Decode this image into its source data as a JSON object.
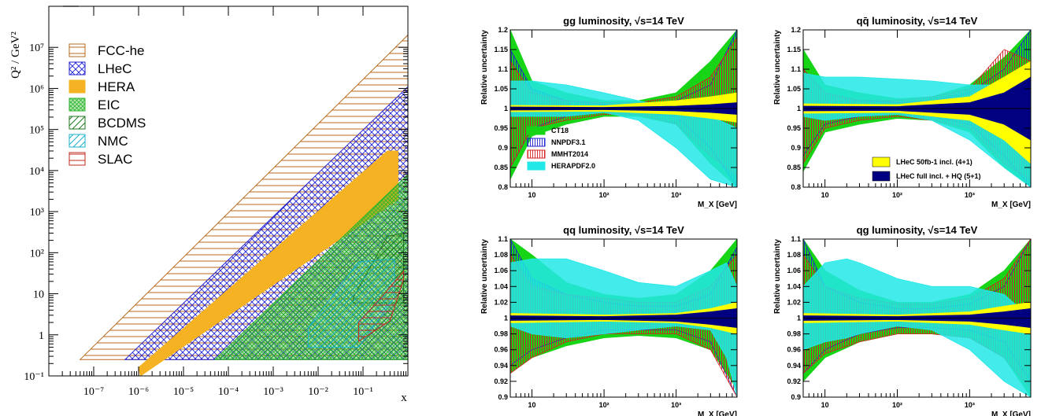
{
  "chart_data": [
    {
      "type": "area",
      "panel": "kinematic-plane",
      "ylabel": "Q² / GeV²",
      "xlabel": "x",
      "x_scale": "log",
      "y_scale": "log",
      "xlim": [
        1e-08,
        1
      ],
      "ylim": [
        0.1,
        100000000.0
      ],
      "x_ticks": [
        "10⁻⁷",
        "10⁻⁶",
        "10⁻⁵",
        "10⁻⁴",
        "10⁻³",
        "10⁻²",
        "10⁻¹"
      ],
      "y_ticks": [
        "10⁻¹",
        "1",
        "10",
        "10²",
        "10³",
        "10⁴",
        "10⁵",
        "10⁶",
        "10⁷"
      ],
      "legend_position": "top-left",
      "series": [
        {
          "name": "FCC-he",
          "color": "#b8691c",
          "pattern": "horizontal-hatch",
          "polygon": [
            [
              5e-08,
              0.25
            ],
            [
              1,
              0.25
            ],
            [
              1,
              20000000.0
            ]
          ]
        },
        {
          "name": "LHeC",
          "color": "#1f1fd0",
          "pattern": "cross-hatch",
          "polygon": [
            [
              5e-07,
              0.25
            ],
            [
              1,
              0.25
            ],
            [
              1,
              1100000.0
            ]
          ]
        },
        {
          "name": "HERA",
          "color": "#f5b324",
          "pattern": "solid",
          "polygon": [
            [
              1.1e-06,
              0.1
            ],
            [
              0.6,
              2000
            ],
            [
              0.6,
              30000
            ],
            [
              0.35,
              30000
            ],
            [
              1e-06,
              0.16
            ]
          ]
        },
        {
          "name": "EIC",
          "color": "#2ab52a",
          "pattern": "fine-cross-hatch",
          "polygon": [
            [
              5e-05,
              0.25
            ],
            [
              1,
              0.25
            ],
            [
              1,
              8000
            ]
          ]
        },
        {
          "name": "BCDMS",
          "color": "#1f7a1f",
          "pattern": "diagonal-hatch",
          "polygon": [
            [
              0.06,
              6
            ],
            [
              0.8,
              6
            ],
            [
              0.8,
              300
            ],
            [
              0.35,
              250
            ],
            [
              0.06,
              8
            ]
          ]
        },
        {
          "name": "NMC",
          "color": "#1ab0c8",
          "pattern": "diagonal-hatch",
          "polygon": [
            [
              0.006,
              0.5
            ],
            [
              0.08,
              0.5
            ],
            [
              0.5,
              8
            ],
            [
              0.5,
              70
            ],
            [
              0.08,
              60
            ],
            [
              0.006,
              1.5
            ]
          ]
        },
        {
          "name": "SLAC",
          "color": "#c0281e",
          "pattern": "horizontal-hatch",
          "polygon": [
            [
              0.08,
              0.7
            ],
            [
              0.4,
              2.2
            ],
            [
              0.8,
              22
            ],
            [
              0.8,
              35
            ],
            [
              0.3,
              10
            ],
            [
              0.08,
              2
            ]
          ]
        }
      ]
    },
    {
      "type": "area",
      "title": "gg luminosity,  √s=14 TeV",
      "xlabel": "M_X [GeV]",
      "ylabel": "Relative uncertainty",
      "x_scale": "log",
      "xlim": [
        5,
        7000
      ],
      "ylim": [
        0.8,
        1.2
      ],
      "y_ticks": [
        "0.8",
        "0.85",
        "0.9",
        "0.95",
        "1",
        "1.05",
        "1.1",
        "1.15",
        "1.2"
      ],
      "x_ticks": [
        "10",
        "10²",
        "10³"
      ],
      "legend": [
        "CT18",
        "NNPDF3.1",
        "MMHT2014",
        "HERAPDF2.0"
      ],
      "legend_position": "bottom-left",
      "series": [
        {
          "name": "CT18",
          "x": [
            5,
            10,
            30,
            100,
            300,
            1000,
            3000,
            7000
          ],
          "upper": [
            1.2,
            1.07,
            1.04,
            1.02,
            1.02,
            1.04,
            1.12,
            1.2
          ],
          "lower": [
            0.82,
            0.93,
            0.96,
            0.98,
            0.98,
            0.96,
            0.86,
            0.8
          ]
        },
        {
          "name": "NNPDF3.1",
          "x": [
            5,
            10,
            30,
            100,
            300,
            1000,
            3000,
            7000
          ],
          "upper": [
            1.15,
            1.05,
            1.02,
            1.01,
            1.01,
            1.02,
            1.06,
            1.2
          ],
          "lower": [
            0.85,
            0.95,
            0.98,
            0.99,
            0.99,
            0.98,
            0.9,
            0.8
          ]
        },
        {
          "name": "MMHT2014",
          "x": [
            5,
            10,
            30,
            100,
            300,
            1000,
            3000,
            7000
          ],
          "upper": [
            1.12,
            1.04,
            1.02,
            1.015,
            1.015,
            1.03,
            1.08,
            1.18
          ],
          "lower": [
            0.85,
            0.95,
            0.97,
            0.985,
            0.985,
            0.96,
            0.88,
            0.83
          ]
        },
        {
          "name": "HERAPDF2.0",
          "x": [
            5,
            10,
            30,
            100,
            300,
            1000,
            3000,
            7000
          ],
          "upper": [
            1.07,
            1.07,
            1.06,
            1.04,
            1.02,
            1.0,
            0.98,
            0.95
          ],
          "lower": [
            0.98,
            0.98,
            0.98,
            0.99,
            0.97,
            0.9,
            0.82,
            0.8
          ]
        },
        {
          "name": "LHeC 50fb-1 incl. (4+1)",
          "x": [
            5,
            100,
            1000,
            3000,
            7000
          ],
          "upper": [
            1.008,
            1.007,
            1.02,
            1.03,
            1.04
          ],
          "lower": [
            0.992,
            0.993,
            0.985,
            0.975,
            0.965
          ]
        },
        {
          "name": "LHeC full incl. + HQ (5+1)",
          "x": [
            5,
            100,
            1000,
            3000,
            7000
          ],
          "upper": [
            1.004,
            1.003,
            1.006,
            1.01,
            1.015
          ],
          "lower": [
            0.996,
            0.997,
            0.994,
            0.99,
            0.985
          ]
        }
      ]
    },
    {
      "type": "area",
      "title": "qq̄ luminosity,  √s=14 TeV",
      "xlabel": "M_X [GeV]",
      "ylabel": "Relative uncertainty",
      "x_scale": "log",
      "xlim": [
        5,
        7000
      ],
      "ylim": [
        0.8,
        1.2
      ],
      "y_ticks": [
        "0.8",
        "0.85",
        "0.9",
        "0.95",
        "1",
        "1.05",
        "1.1",
        "1.15",
        "1.2"
      ],
      "x_ticks": [
        "10",
        "10²",
        "10³"
      ],
      "legend": [
        "LHeC 50fb-1 incl. (4+1)",
        "LHeC full incl. + HQ (5+1)"
      ],
      "legend_position": "bottom-right",
      "series": [
        {
          "name": "CT18",
          "x": [
            5,
            10,
            30,
            100,
            300,
            1000,
            3000,
            7000
          ],
          "upper": [
            1.15,
            1.06,
            1.04,
            1.025,
            1.03,
            1.06,
            1.13,
            1.2
          ],
          "lower": [
            0.84,
            0.94,
            0.96,
            0.975,
            0.97,
            0.94,
            0.85,
            0.8
          ]
        },
        {
          "name": "NNPDF3.1",
          "x": [
            5,
            10,
            30,
            100,
            300,
            1000,
            3000,
            7000
          ],
          "upper": [
            1.1,
            1.04,
            1.02,
            1.015,
            1.02,
            1.04,
            1.1,
            1.2
          ],
          "lower": [
            0.88,
            0.96,
            0.98,
            0.985,
            0.98,
            0.96,
            0.88,
            0.8
          ]
        },
        {
          "name": "MMHT2014",
          "x": [
            5,
            10,
            30,
            100,
            300,
            1000,
            3000,
            7000
          ],
          "upper": [
            1.1,
            1.04,
            1.02,
            1.02,
            1.03,
            1.05,
            1.15,
            1.12
          ],
          "lower": [
            0.86,
            0.95,
            0.97,
            0.98,
            0.97,
            0.95,
            0.86,
            0.82
          ]
        },
        {
          "name": "HERAPDF2.0",
          "x": [
            5,
            10,
            30,
            100,
            300,
            1000,
            3000,
            7000
          ],
          "upper": [
            1.09,
            1.08,
            1.08,
            1.075,
            1.07,
            1.06,
            1.06,
            1.05
          ],
          "lower": [
            0.98,
            0.97,
            0.98,
            0.985,
            0.97,
            0.92,
            0.85,
            0.8
          ]
        },
        {
          "name": "LHeC 50fb-1 incl. (4+1)",
          "x": [
            5,
            100,
            1000,
            3000,
            7000
          ],
          "upper": [
            1.012,
            1.01,
            1.03,
            1.08,
            1.12
          ],
          "lower": [
            0.988,
            0.99,
            0.97,
            0.92,
            0.86
          ]
        },
        {
          "name": "LHeC full incl. + HQ (5+1)",
          "x": [
            5,
            100,
            1000,
            3000,
            7000
          ],
          "upper": [
            1.006,
            1.005,
            1.015,
            1.04,
            1.08
          ],
          "lower": [
            0.994,
            0.995,
            0.985,
            0.96,
            0.92
          ]
        }
      ]
    },
    {
      "type": "area",
      "title": "qq luminosity,  √s=14 TeV",
      "xlabel": "M_X [GeV]",
      "ylabel": "Relative uncertainty",
      "x_scale": "log",
      "xlim": [
        5,
        7000
      ],
      "ylim": [
        0.9,
        1.1
      ],
      "y_ticks": [
        "0.9",
        "0.92",
        "0.94",
        "0.96",
        "0.98",
        "1",
        "1.02",
        "1.04",
        "1.06",
        "1.08",
        "1.1"
      ],
      "x_ticks": [
        "10",
        "10²",
        "10³"
      ],
      "series": [
        {
          "name": "CT18",
          "x": [
            5,
            10,
            30,
            100,
            300,
            1000,
            3000,
            7000
          ],
          "upper": [
            1.1,
            1.08,
            1.045,
            1.03,
            1.025,
            1.03,
            1.06,
            1.1
          ],
          "lower": [
            0.93,
            0.95,
            0.965,
            0.975,
            0.978,
            0.975,
            0.96,
            0.91
          ]
        },
        {
          "name": "NNPDF3.1",
          "x": [
            5,
            10,
            30,
            100,
            300,
            1000,
            3000,
            7000
          ],
          "upper": [
            1.1,
            1.05,
            1.03,
            1.02,
            1.015,
            1.015,
            1.03,
            1.09
          ],
          "lower": [
            0.94,
            0.96,
            0.975,
            0.985,
            0.985,
            0.985,
            0.97,
            0.9
          ]
        },
        {
          "name": "MMHT2014",
          "x": [
            5,
            10,
            30,
            100,
            300,
            1000,
            3000,
            7000
          ],
          "upper": [
            1.08,
            1.04,
            1.03,
            1.025,
            1.02,
            1.02,
            1.04,
            1.08
          ],
          "lower": [
            0.93,
            0.95,
            0.97,
            0.98,
            0.98,
            0.98,
            0.96,
            0.9
          ]
        },
        {
          "name": "HERAPDF2.0",
          "x": [
            5,
            10,
            30,
            100,
            300,
            1000,
            3000,
            5000,
            7000
          ],
          "upper": [
            1.07,
            1.075,
            1.075,
            1.06,
            1.045,
            1.04,
            1.06,
            1.07,
            1.04
          ],
          "lower": [
            0.99,
            0.98,
            0.975,
            0.98,
            0.985,
            0.99,
            0.985,
            0.95,
            0.9
          ]
        },
        {
          "name": "LHeC 50fb-1 incl. (4+1)",
          "x": [
            5,
            100,
            1000,
            3000,
            7000
          ],
          "upper": [
            1.006,
            1.004,
            1.006,
            1.012,
            1.02
          ],
          "lower": [
            0.994,
            0.996,
            0.994,
            0.988,
            0.98
          ]
        },
        {
          "name": "LHeC full incl. + HQ (5+1)",
          "x": [
            5,
            100,
            1000,
            3000,
            7000
          ],
          "upper": [
            1.003,
            1.002,
            1.004,
            1.008,
            1.012
          ],
          "lower": [
            0.997,
            0.998,
            0.996,
            0.992,
            0.988
          ]
        }
      ]
    },
    {
      "type": "area",
      "title": "qg luminosity,  √s=14 TeV",
      "xlabel": "M_X [GeV]",
      "ylabel": "Relative uncertainty",
      "x_scale": "log",
      "xlim": [
        5,
        7000
      ],
      "ylim": [
        0.9,
        1.1
      ],
      "y_ticks": [
        "0.9",
        "0.92",
        "0.94",
        "0.96",
        "0.98",
        "1",
        "1.02",
        "1.04",
        "1.06",
        "1.08",
        "1.1"
      ],
      "x_ticks": [
        "10",
        "10²",
        "10³"
      ],
      "series": [
        {
          "name": "CT18",
          "x": [
            5,
            10,
            30,
            100,
            300,
            1000,
            3000,
            7000
          ],
          "upper": [
            1.1,
            1.06,
            1.035,
            1.02,
            1.02,
            1.03,
            1.06,
            1.1
          ],
          "lower": [
            0.92,
            0.95,
            0.97,
            0.98,
            0.98,
            0.975,
            0.95,
            0.9
          ]
        },
        {
          "name": "NNPDF3.1",
          "x": [
            5,
            10,
            30,
            100,
            300,
            1000,
            3000,
            7000
          ],
          "upper": [
            1.1,
            1.04,
            1.02,
            1.012,
            1.012,
            1.018,
            1.04,
            1.1
          ],
          "lower": [
            0.93,
            0.96,
            0.98,
            0.988,
            0.988,
            0.985,
            0.97,
            0.92
          ]
        },
        {
          "name": "MMHT2014",
          "x": [
            5,
            10,
            30,
            100,
            300,
            1000,
            3000,
            7000
          ],
          "upper": [
            1.08,
            1.04,
            1.025,
            1.018,
            1.018,
            1.025,
            1.05,
            1.1
          ],
          "lower": [
            0.93,
            0.955,
            0.97,
            0.98,
            0.98,
            0.975,
            0.95,
            0.91
          ]
        },
        {
          "name": "HERAPDF2.0",
          "x": [
            5,
            10,
            20,
            30,
            100,
            300,
            1000,
            3000,
            7000
          ],
          "upper": [
            1.04,
            1.07,
            1.075,
            1.07,
            1.05,
            1.04,
            1.04,
            1.03,
            1.0
          ],
          "lower": [
            0.96,
            0.97,
            0.975,
            0.98,
            0.99,
            0.985,
            0.96,
            0.92,
            0.9
          ]
        },
        {
          "name": "LHeC 50fb-1 incl. (4+1)",
          "x": [
            5,
            100,
            1000,
            3000,
            7000
          ],
          "upper": [
            1.006,
            1.004,
            1.008,
            1.015,
            1.02
          ],
          "lower": [
            0.994,
            0.996,
            0.992,
            0.985,
            0.98
          ]
        },
        {
          "name": "LHeC full incl. + HQ (5+1)",
          "x": [
            5,
            100,
            1000,
            3000,
            7000
          ],
          "upper": [
            1.003,
            1.002,
            1.004,
            1.008,
            1.012
          ],
          "lower": [
            0.997,
            0.998,
            0.996,
            0.992,
            0.988
          ]
        }
      ]
    }
  ],
  "style": {
    "colors": {
      "FCC-he": "#b8691c",
      "LHeC": "#1f1fd0",
      "HERA": "#f5b324",
      "EIC": "#2ab52a",
      "BCDMS": "#1f7a1f",
      "NMC": "#1ab0c8",
      "SLAC": "#c0281e",
      "CT18": "#17d417",
      "NNPDF3.1": "#1f1fd0",
      "MMHT2014": "#d42020",
      "HERAPDF2.0": "#22e8e8",
      "LHeC 50fb-1 incl. (4+1)": "#ffff00",
      "LHeC full incl. + HQ (5+1)": "#000080"
    }
  }
}
